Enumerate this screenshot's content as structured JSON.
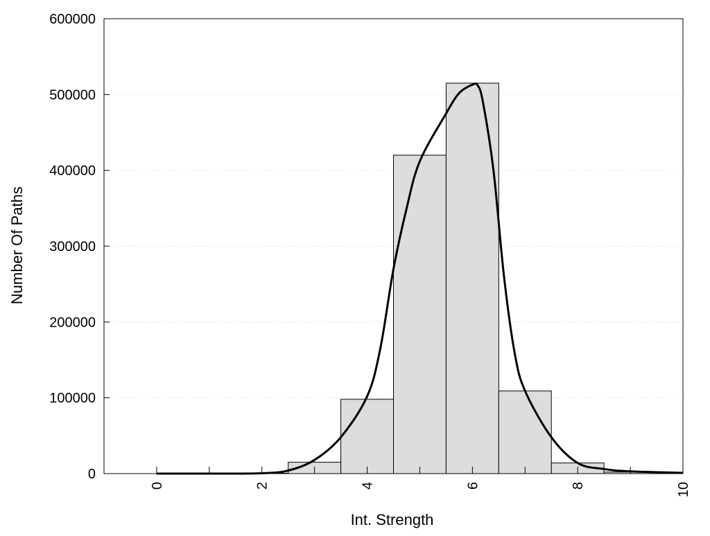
{
  "chart_data": {
    "type": "bar",
    "title": "",
    "xlabel": "Int. Strength",
    "ylabel": "Number Of Paths",
    "xlim": [
      -1,
      10
    ],
    "ylim": [
      0,
      600000
    ],
    "x_ticks": [
      0,
      2,
      4,
      6,
      8,
      10
    ],
    "x_tick_labels": [
      "0",
      "2",
      "4",
      "6",
      "8",
      "10"
    ],
    "y_ticks": [
      0,
      100000,
      200000,
      300000,
      400000,
      500000,
      600000
    ],
    "y_tick_labels": [
      "0",
      "100000",
      "200000",
      "300000",
      "400000",
      "500000",
      "600000"
    ],
    "grid": "horizontal dotted",
    "series": [
      {
        "kind": "histogram",
        "bin_width": 1,
        "x": [
          0,
          1,
          2,
          3,
          4,
          5,
          6,
          7,
          8,
          9
        ],
        "values": [
          0,
          0,
          500,
          15000,
          98000,
          420000,
          515000,
          109000,
          14000,
          2000
        ],
        "color": "#dddddd"
      },
      {
        "kind": "line",
        "x": [
          0,
          1,
          2,
          2.5,
          3,
          3.5,
          4,
          4.25,
          4.5,
          4.75,
          5,
          5.5,
          5.75,
          6,
          6.1,
          6.2,
          6.4,
          6.6,
          6.8,
          7,
          7.5,
          8,
          8.5,
          9,
          10
        ],
        "values": [
          0,
          0,
          500,
          4000,
          18000,
          48000,
          102000,
          165000,
          270000,
          350000,
          412000,
          475000,
          502000,
          513000,
          512000,
          490000,
          400000,
          260000,
          160000,
          109000,
          48000,
          14000,
          6000,
          3000,
          1000
        ],
        "color": "#000000"
      }
    ]
  }
}
